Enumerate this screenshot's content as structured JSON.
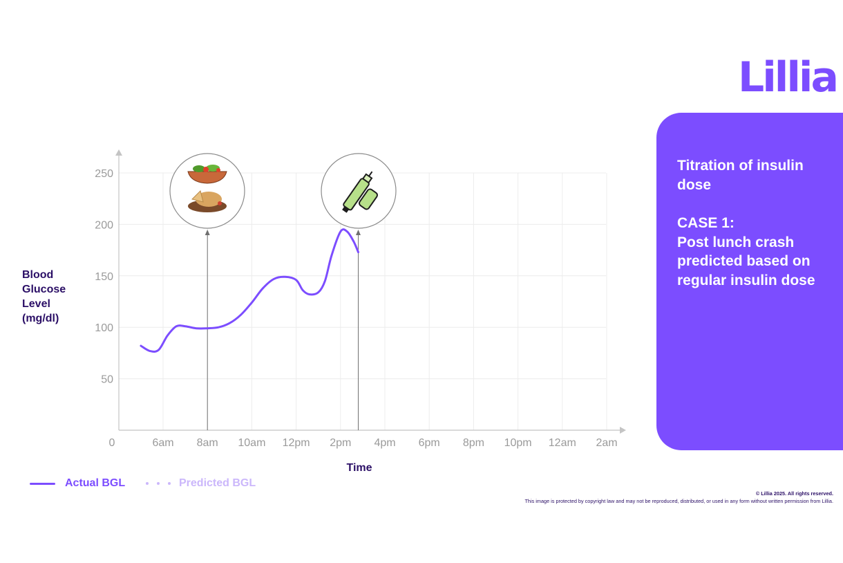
{
  "brand": {
    "logo_text": "Lillia"
  },
  "panel": {
    "heading": "Titration of insulin dose",
    "case_title": "CASE 1:",
    "case_text": "Post lunch crash predicted based on regular insulin dose"
  },
  "footer": {
    "copyright_line": "© Lillia 2025. All rights reserved.",
    "notice": "This image is protected by copyright law and may not be reproduced, distributed, or used in any form without written permission from Lillia."
  },
  "colors": {
    "brand_purple": "#7c4dff",
    "predicted_purple": "#cbb7fb",
    "dark_text": "#2b0f66",
    "axis_text": "#9a9a9a",
    "grid": "#ececec",
    "axis": "#c4c4c4"
  },
  "events": [
    {
      "time": 8,
      "icon": "meal-icon"
    },
    {
      "time": 14.8,
      "icon": "insulin-pen-icon"
    }
  ],
  "chart_data": {
    "type": "line",
    "xlabel": "Time",
    "ylabel": "Blood Glucose Level (mg/dl)",
    "origin_label": "0",
    "x_ticks": [
      {
        "x": 6,
        "label": "6am"
      },
      {
        "x": 8,
        "label": "8am"
      },
      {
        "x": 10,
        "label": "10am"
      },
      {
        "x": 12,
        "label": "12pm"
      },
      {
        "x": 14,
        "label": "2pm"
      },
      {
        "x": 16,
        "label": "4pm"
      },
      {
        "x": 18,
        "label": "6pm"
      },
      {
        "x": 20,
        "label": "8pm"
      },
      {
        "x": 22,
        "label": "10pm"
      },
      {
        "x": 24,
        "label": "12am"
      },
      {
        "x": 26,
        "label": "2am"
      }
    ],
    "y_ticks": [
      50,
      100,
      150,
      200,
      250
    ],
    "xlim": [
      4,
      26
    ],
    "ylim": [
      0,
      250
    ],
    "grid": true,
    "legend_position": "bottom-left",
    "series": [
      {
        "name": "Actual BGL",
        "style": "solid",
        "x": [
          5,
          5.4,
          5.8,
          6.2,
          6.6,
          7.0,
          7.5,
          8.0,
          8.5,
          9.0,
          9.5,
          10.0,
          10.5,
          11.0,
          11.5,
          12.0,
          12.3,
          12.6,
          13.0,
          13.3,
          13.6,
          14.0,
          14.3,
          14.6,
          14.8
        ],
        "y": [
          82,
          77,
          78,
          92,
          101,
          101,
          99,
          99,
          100,
          104,
          112,
          124,
          138,
          147,
          149,
          146,
          136,
          132,
          134,
          145,
          170,
          193,
          193,
          183,
          173
        ]
      },
      {
        "name": "Predicted BGL",
        "style": "dotted",
        "x": [],
        "y": []
      }
    ]
  }
}
